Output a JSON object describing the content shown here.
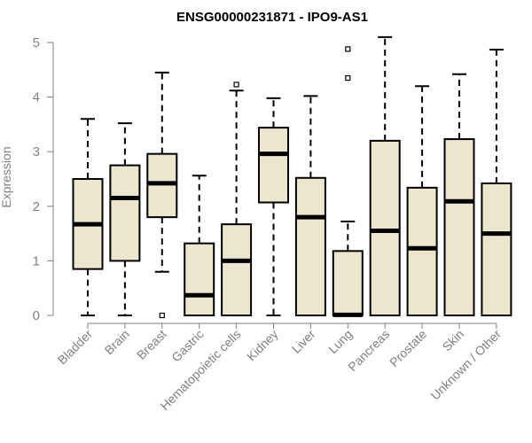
{
  "chart_data": {
    "type": "boxplot",
    "title": "ENSG00000231871 - IPO9-AS1",
    "xlabel": "",
    "ylabel": "Expression",
    "ylim": [
      0,
      5
    ],
    "yticks": [
      "0",
      "1",
      "2",
      "3",
      "4",
      "5"
    ],
    "grid": false,
    "colors": {
      "box_fill": "#ede6cf",
      "stroke": "#000000",
      "axis": "#808080"
    },
    "categories": [
      "Bladder",
      "Brain",
      "Breast",
      "Gastric",
      "Hematopoietic cells",
      "Kidney",
      "Liver",
      "Lung",
      "Pancreas",
      "Prostate",
      "Skin",
      "Unknown / Other"
    ],
    "boxes": [
      {
        "min": 0,
        "q1": 0.85,
        "median": 1.67,
        "q3": 2.5,
        "max": 3.6,
        "outliers": []
      },
      {
        "min": 0,
        "q1": 1.0,
        "median": 2.15,
        "q3": 2.75,
        "max": 3.52,
        "outliers": []
      },
      {
        "min": 0.8,
        "q1": 1.8,
        "median": 2.42,
        "q3": 2.96,
        "max": 4.45,
        "outliers": [
          0
        ]
      },
      {
        "min": 0,
        "q1": 0,
        "median": 0.37,
        "q3": 1.32,
        "max": 2.56,
        "outliers": []
      },
      {
        "min": 0,
        "q1": 0,
        "median": 1.0,
        "q3": 1.67,
        "max": 4.12,
        "outliers": [
          4.23
        ]
      },
      {
        "min": 0,
        "q1": 2.07,
        "median": 2.96,
        "q3": 3.44,
        "max": 3.98,
        "outliers": []
      },
      {
        "min": 0,
        "q1": 0,
        "median": 1.8,
        "q3": 2.52,
        "max": 4.02,
        "outliers": []
      },
      {
        "min": 0,
        "q1": 0,
        "median": 0.01,
        "q3": 1.18,
        "max": 1.72,
        "outliers": [
          4.35,
          4.88
        ]
      },
      {
        "min": 0,
        "q1": 0,
        "median": 1.55,
        "q3": 3.2,
        "max": 5.1,
        "outliers": []
      },
      {
        "min": 0,
        "q1": 0,
        "median": 1.23,
        "q3": 2.34,
        "max": 4.2,
        "outliers": []
      },
      {
        "min": 0,
        "q1": 0,
        "median": 2.09,
        "q3": 3.23,
        "max": 4.42,
        "outliers": []
      },
      {
        "min": 0,
        "q1": 0,
        "median": 1.5,
        "q3": 2.42,
        "max": 4.87,
        "outliers": []
      }
    ]
  }
}
